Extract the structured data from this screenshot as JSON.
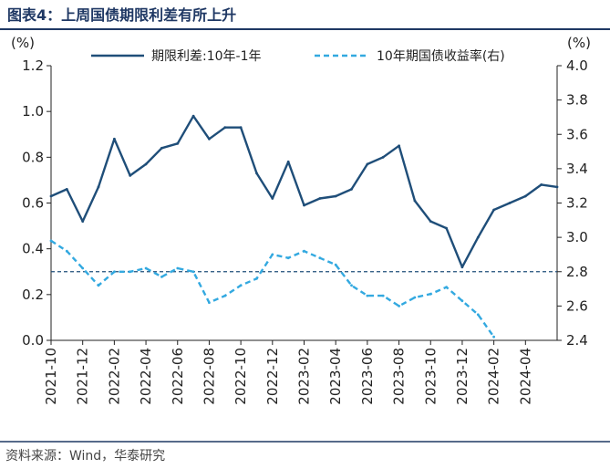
{
  "figure": {
    "title": "图表4：上周国债期限利差有所上升",
    "source": "资料来源：Wind，华泰研究"
  },
  "chart_data": {
    "type": "line",
    "left_axis": {
      "unit": "(%)",
      "ylim": [
        0.0,
        1.2
      ],
      "ticks": [
        "0.0",
        "0.2",
        "0.4",
        "0.6",
        "0.8",
        "1.0",
        "1.2"
      ]
    },
    "right_axis": {
      "unit": "(%)",
      "ylim": [
        2.4,
        4.0
      ],
      "ticks": [
        "2.4",
        "2.6",
        "2.8",
        "3.0",
        "3.2",
        "3.4",
        "3.6",
        "3.8",
        "4.0"
      ]
    },
    "x_ticks": [
      "2021-10",
      "2021-12",
      "2022-02",
      "2022-04",
      "2022-06",
      "2022-08",
      "2022-10",
      "2022-12",
      "2023-02",
      "2023-04",
      "2023-06",
      "2023-08",
      "2023-10",
      "2023-12",
      "2024-02",
      "2024-04"
    ],
    "xlim": [
      "2021-10",
      "2024-06"
    ],
    "reference_line": {
      "axis": "right",
      "value": 2.8,
      "style": "dashed",
      "color": "#1f4e79"
    },
    "series": [
      {
        "name": "期限利差:10年-1年",
        "axis": "left",
        "color": "#1f4e79",
        "style": "solid",
        "x": [
          "2021-10",
          "2021-11",
          "2021-12",
          "2022-01",
          "2022-02",
          "2022-03",
          "2022-04",
          "2022-05",
          "2022-06",
          "2022-07",
          "2022-08",
          "2022-09",
          "2022-10",
          "2022-11",
          "2022-12",
          "2023-01",
          "2023-02",
          "2023-03",
          "2023-04",
          "2023-05",
          "2023-06",
          "2023-07",
          "2023-08",
          "2023-09",
          "2023-10",
          "2023-11",
          "2023-12",
          "2024-01",
          "2024-02",
          "2024-03",
          "2024-04",
          "2024-05",
          "2024-06"
        ],
        "values": [
          0.63,
          0.66,
          0.52,
          0.67,
          0.88,
          0.72,
          0.77,
          0.84,
          0.86,
          0.98,
          0.88,
          0.93,
          0.93,
          0.73,
          0.62,
          0.78,
          0.59,
          0.62,
          0.63,
          0.66,
          0.77,
          0.8,
          0.85,
          0.61,
          0.52,
          0.49,
          0.32,
          0.45,
          0.57,
          0.6,
          0.63,
          0.68,
          0.67
        ]
      },
      {
        "name": "10年期国债收益率(右)",
        "axis": "right",
        "color": "#33a9e0",
        "style": "dashed",
        "x": [
          "2021-10",
          "2021-11",
          "2021-12",
          "2022-01",
          "2022-02",
          "2022-03",
          "2022-04",
          "2022-05",
          "2022-06",
          "2022-07",
          "2022-08",
          "2022-09",
          "2022-10",
          "2022-11",
          "2022-12",
          "2023-01",
          "2023-02",
          "2023-03",
          "2023-04",
          "2023-05",
          "2023-06",
          "2023-07",
          "2023-08",
          "2023-09",
          "2023-10",
          "2023-11",
          "2023-12",
          "2024-01",
          "2024-02"
        ],
        "values": [
          2.98,
          2.92,
          2.82,
          2.72,
          2.8,
          2.8,
          2.82,
          2.77,
          2.82,
          2.8,
          2.62,
          2.66,
          2.72,
          2.76,
          2.9,
          2.88,
          2.92,
          2.88,
          2.84,
          2.72,
          2.66,
          2.66,
          2.6,
          2.65,
          2.67,
          2.71,
          2.63,
          2.55,
          2.42
        ]
      }
    ]
  }
}
